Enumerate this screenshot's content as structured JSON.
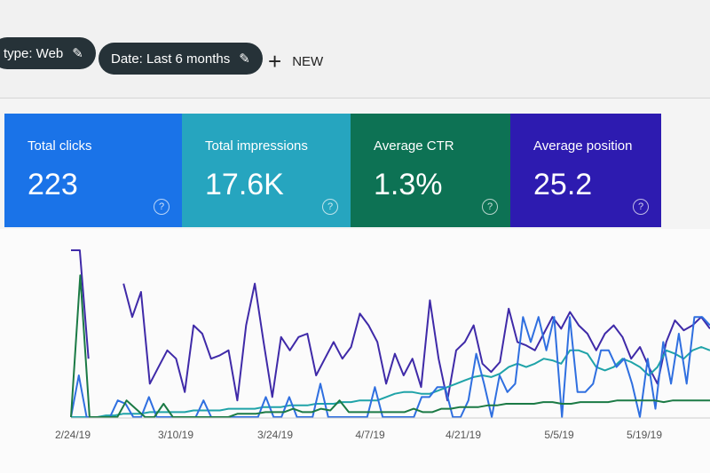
{
  "filters": [
    {
      "label": "type: Web",
      "icon": "pencil-icon"
    },
    {
      "label": "Date: Last 6 months",
      "icon": "pencil-icon"
    }
  ],
  "new_button": {
    "icon": "plus-icon",
    "label": "NEW"
  },
  "cards": [
    {
      "label": "Total clicks",
      "value": "223",
      "color": "#1a73e8"
    },
    {
      "label": "Total impressions",
      "value": "17.6K",
      "color": "#26a5bf"
    },
    {
      "label": "Average CTR",
      "value": "1.3%",
      "color": "#0d7254"
    },
    {
      "label": "Average position",
      "value": "25.2",
      "color": "#2d1bb0"
    }
  ],
  "help_glyph": "?",
  "chart_data": {
    "type": "line",
    "x_ticks": [
      "2/24/19",
      "3/10/19",
      "3/24/19",
      "4/7/19",
      "4/21/19",
      "5/5/19",
      "5/19/19"
    ],
    "ylim": [
      0,
      100
    ],
    "grid": false,
    "series": [
      {
        "metric": "Average position",
        "color": "#3f2aa8",
        "values": [
          100,
          100,
          35,
          null,
          null,
          null,
          80,
          60,
          75,
          20,
          30,
          40,
          35,
          15,
          55,
          50,
          35,
          37,
          40,
          10,
          55,
          80,
          45,
          12,
          48,
          40,
          48,
          50,
          25,
          35,
          45,
          35,
          42,
          62,
          55,
          45,
          20,
          38,
          25,
          35,
          18,
          70,
          35,
          10,
          40,
          45,
          55,
          32,
          27,
          33,
          65,
          45,
          43,
          40,
          50,
          60,
          53,
          63,
          55,
          50,
          40,
          50,
          55,
          48,
          35,
          42,
          30,
          20,
          45,
          58,
          52,
          55,
          60,
          53
        ]
      },
      {
        "metric": "Total impressions",
        "color": "#1fa3a8",
        "values": [
          0,
          0,
          0,
          0,
          1,
          1,
          2,
          2,
          2,
          3,
          3,
          3,
          3,
          3,
          4,
          4,
          4,
          4,
          5,
          5,
          5,
          5,
          6,
          6,
          6,
          7,
          7,
          7,
          8,
          8,
          8,
          9,
          9,
          10,
          10,
          10,
          12,
          14,
          15,
          15,
          14,
          14,
          16,
          18,
          20,
          22,
          24,
          25,
          24,
          26,
          30,
          32,
          30,
          32,
          35,
          34,
          32,
          40,
          40,
          38,
          30,
          28,
          30,
          35,
          33,
          30,
          25,
          30,
          40,
          38,
          35,
          40,
          42,
          40
        ]
      },
      {
        "metric": "Total clicks",
        "color": "#2f6fe0",
        "values": [
          0,
          25,
          0,
          0,
          0,
          0,
          10,
          8,
          0,
          0,
          12,
          0,
          0,
          0,
          0,
          0,
          0,
          10,
          0,
          0,
          0,
          0,
          0,
          0,
          0,
          12,
          0,
          0,
          12,
          0,
          0,
          0,
          20,
          0,
          0,
          0,
          0,
          0,
          0,
          18,
          0,
          0,
          0,
          0,
          0,
          12,
          12,
          18,
          18,
          0,
          0,
          10,
          38,
          20,
          0,
          25,
          15,
          20,
          60,
          45,
          60,
          40,
          60,
          0,
          60,
          15,
          15,
          20,
          40,
          40,
          30,
          35,
          20,
          0,
          35,
          5,
          45,
          20,
          50,
          20,
          60,
          60,
          55
        ]
      },
      {
        "metric": "Average CTR",
        "color": "#1b7a45",
        "values": [
          0,
          85,
          0,
          0,
          0,
          0,
          10,
          5,
          0,
          0,
          8,
          0,
          0,
          0,
          0,
          0,
          0,
          0,
          2,
          2,
          2,
          3,
          3,
          3,
          5,
          3,
          3,
          5,
          4,
          10,
          3,
          3,
          3,
          3,
          3,
          3,
          3,
          5,
          3,
          3,
          5,
          5,
          6,
          6,
          6,
          7,
          7,
          8,
          8,
          8,
          8,
          9,
          9,
          8,
          8,
          9,
          9,
          9,
          9,
          10,
          10,
          10,
          10,
          10,
          9,
          10,
          10,
          10,
          10,
          10
        ]
      }
    ]
  }
}
